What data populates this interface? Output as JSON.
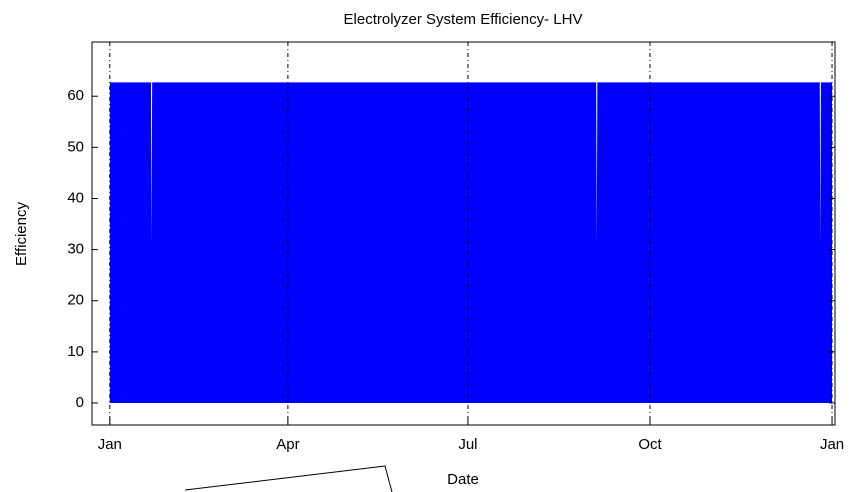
{
  "chart_data": {
    "type": "area",
    "title": "Electrolyzer System Efficiency- LHV",
    "x_label": "Date",
    "y_label": "Efficiency",
    "x": [
      0,
      20.8,
      21.1,
      21.4,
      245.8,
      246.1,
      246.4,
      358.8,
      359.1,
      359.4,
      365
    ],
    "series": [
      {
        "name": "Efficiency",
        "color": "#0000ff",
        "values": [
          62.7,
          62.7,
          31,
          62.7,
          62.7,
          31,
          62.7,
          62.7,
          31,
          62.7,
          62.7
        ]
      }
    ],
    "xlim": [
      -9,
      366.5
    ],
    "xticks": [
      {
        "value": 0,
        "label": "Jan"
      },
      {
        "value": 90,
        "label": "Apr"
      },
      {
        "value": 181,
        "label": "Jul"
      },
      {
        "value": 273,
        "label": "Oct"
      },
      {
        "value": 365,
        "label": "Jan"
      }
    ],
    "ylim": [
      -4.3,
      70.6
    ],
    "yticks": [
      0,
      10,
      20,
      30,
      40,
      50,
      60
    ],
    "grid": true
  }
}
